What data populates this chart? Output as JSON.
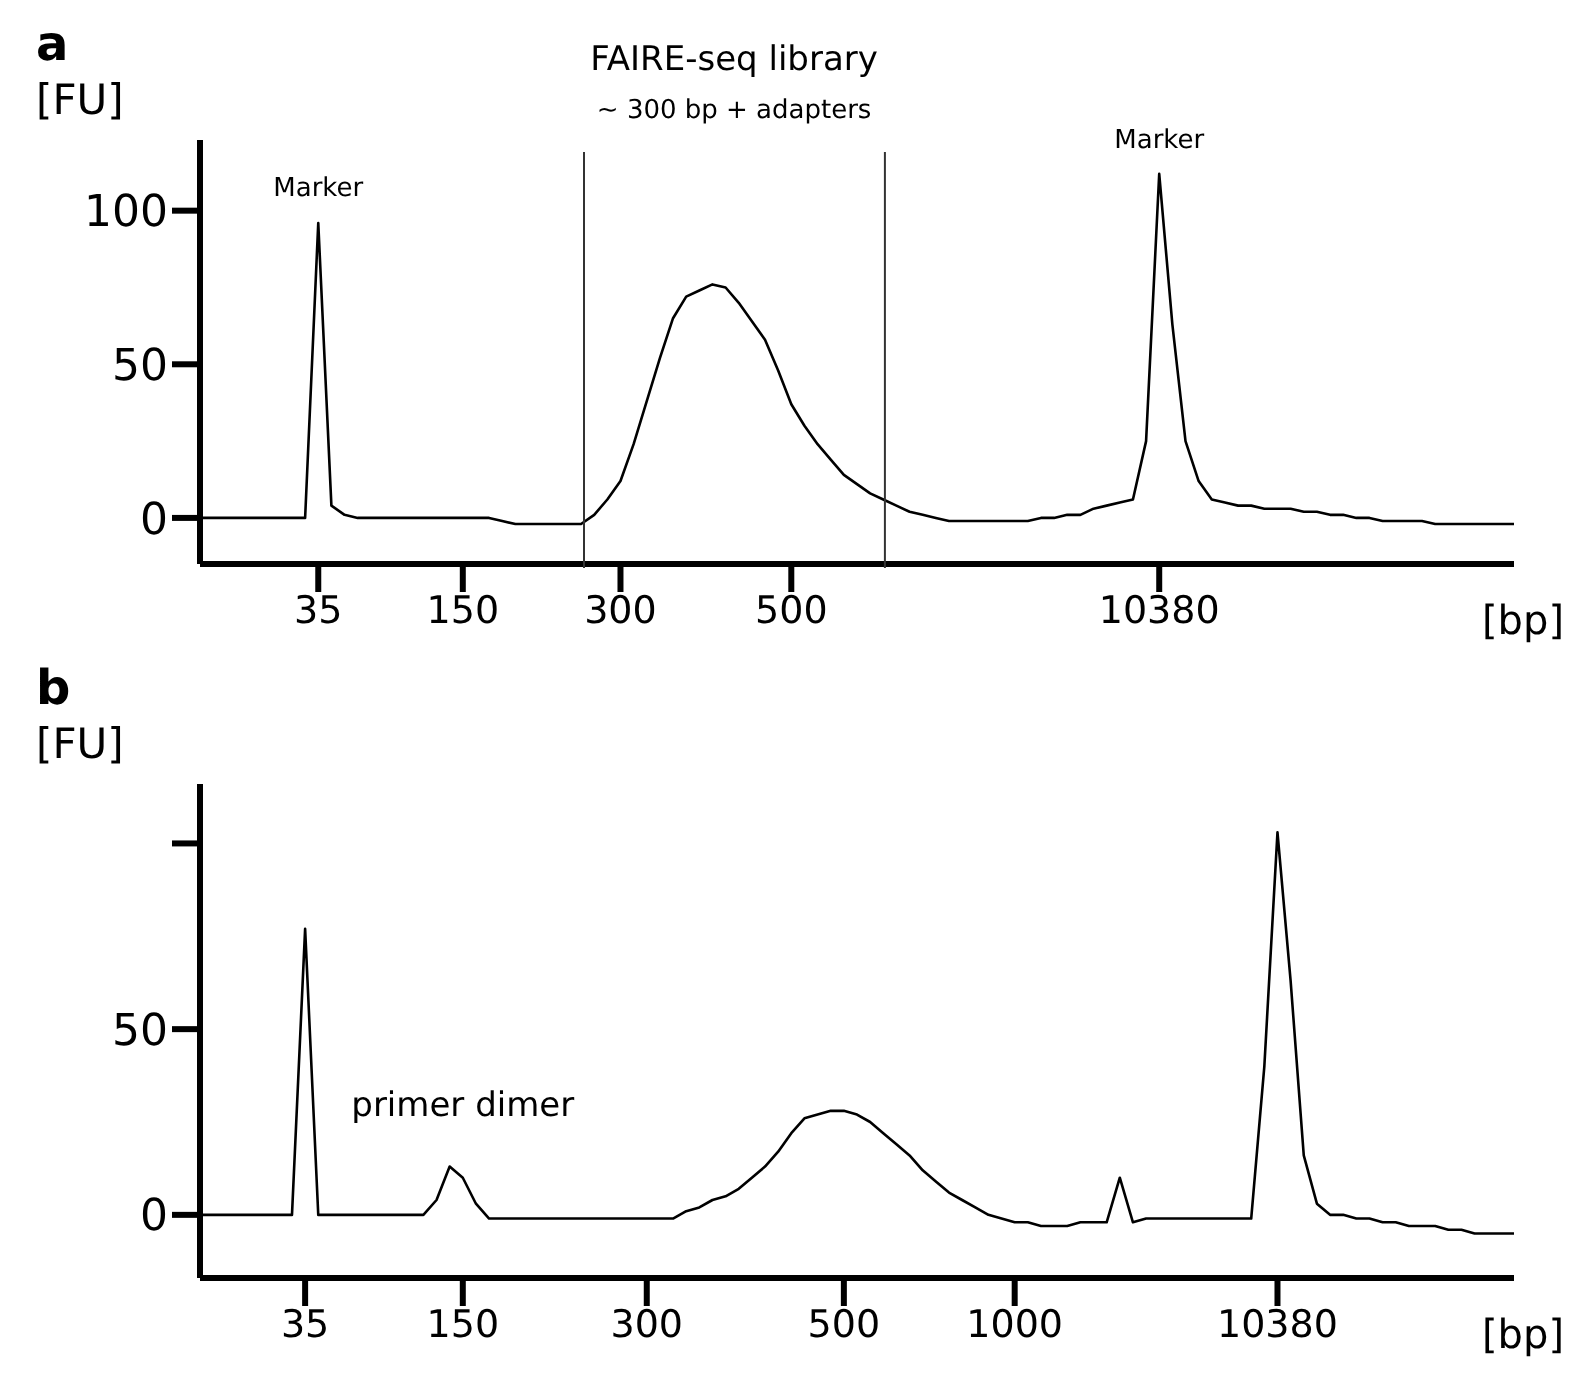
{
  "chart_data": [
    {
      "type": "line",
      "title": "a",
      "subtitle": "FAIRE-seq library",
      "ylabel": "[FU]",
      "xlabel": "[bp]",
      "annotations": [
        "~ 300 bp + adapters",
        {
          "text": "Marker",
          "x": "35",
          "y": 96
        },
        {
          "text": "Marker",
          "x": "10380",
          "y": 112
        }
      ],
      "categories": [
        null,
        null,
        null,
        null,
        null,
        null,
        null,
        null,
        null,
        "35",
        null,
        null,
        null,
        null,
        null,
        null,
        null,
        null,
        null,
        null,
        "150",
        null,
        null,
        null,
        null,
        null,
        null,
        null,
        null,
        null,
        null,
        null,
        "300",
        null,
        null,
        null,
        null,
        null,
        null,
        null,
        null,
        null,
        null,
        null,
        null,
        "500",
        null,
        null,
        null,
        null,
        null,
        null,
        null,
        null,
        null,
        null,
        null,
        null,
        null,
        null,
        null,
        null,
        null,
        null,
        null,
        null,
        null,
        null,
        null,
        null,
        null,
        null,
        null,
        "10380",
        null,
        null,
        null,
        null,
        null,
        null,
        null,
        null,
        null,
        null,
        null,
        null,
        null,
        null,
        null,
        null,
        null,
        null,
        null,
        null,
        null,
        null,
        null,
        null,
        null,
        null,
        null
      ],
      "series": [
        {
          "color": "#000000",
          "values": [
            0,
            0,
            0,
            0,
            0,
            0,
            0,
            0,
            0,
            96,
            4,
            1,
            0,
            0,
            0,
            0,
            0,
            0,
            0,
            0,
            0,
            0,
            0,
            -1,
            -2,
            -2,
            -2,
            -2,
            -2,
            -2,
            1,
            6,
            12,
            24,
            38,
            52,
            65,
            72,
            74,
            76,
            75,
            70,
            64,
            58,
            48,
            37,
            30,
            24,
            19,
            14,
            11,
            8,
            6,
            4,
            2,
            1,
            0,
            -1,
            -1,
            -1,
            -1,
            -1,
            -1,
            -1,
            0,
            0,
            1,
            1,
            3,
            4,
            5,
            6,
            25,
            112,
            63,
            25,
            12,
            6,
            5,
            4,
            4,
            3,
            3,
            3,
            2,
            2,
            1,
            1,
            0,
            0,
            -1,
            -1,
            -1,
            -1,
            -2,
            -2,
            -2,
            -2,
            -2,
            -2,
            -2
          ]
        }
      ],
      "ylim": [
        -15,
        123
      ],
      "yticks": [
        0,
        50,
        100
      ],
      "grid": false,
      "legend": false,
      "marker": "none"
    },
    {
      "type": "line",
      "title": "b",
      "ylabel": "[FU]",
      "xlabel": "[bp]",
      "annotations": [
        {
          "text": "primer dimer",
          "x": "150",
          "y": 13
        }
      ],
      "categories": [
        null,
        null,
        null,
        null,
        null,
        null,
        null,
        null,
        "35",
        null,
        null,
        null,
        null,
        null,
        null,
        null,
        null,
        null,
        null,
        null,
        "150",
        null,
        null,
        null,
        null,
        null,
        null,
        null,
        null,
        null,
        null,
        null,
        null,
        null,
        "300",
        null,
        null,
        null,
        null,
        null,
        null,
        null,
        null,
        null,
        null,
        null,
        null,
        null,
        null,
        "500",
        null,
        null,
        null,
        null,
        null,
        null,
        null,
        null,
        null,
        null,
        null,
        null,
        "1000",
        null,
        null,
        null,
        null,
        null,
        null,
        null,
        null,
        null,
        null,
        null,
        null,
        null,
        null,
        null,
        null,
        null,
        null,
        null,
        "10380",
        null,
        null,
        null,
        null,
        null,
        null,
        null,
        null,
        null,
        null,
        null,
        null,
        null,
        null,
        null,
        null,
        null,
        null
      ],
      "series": [
        {
          "color": "#000000",
          "values": [
            0,
            0,
            0,
            0,
            0,
            0,
            0,
            0,
            77,
            0,
            0,
            0,
            0,
            0,
            0,
            0,
            0,
            0,
            4,
            13,
            10,
            3,
            -1,
            -1,
            -1,
            -1,
            -1,
            -1,
            -1,
            -1,
            -1,
            -1,
            -1,
            -1,
            -1,
            -1,
            -1,
            1,
            2,
            4,
            5,
            7,
            10,
            13,
            17,
            22,
            26,
            27,
            28,
            28,
            27,
            25,
            22,
            19,
            16,
            12,
            9,
            6,
            4,
            2,
            0,
            -1,
            -2,
            -2,
            -3,
            -3,
            -3,
            -2,
            -2,
            -2,
            10,
            -2,
            -1,
            -1,
            -1,
            -1,
            -1,
            -1,
            -1,
            -1,
            -1,
            40,
            103,
            63,
            16,
            3,
            0,
            0,
            -1,
            -1,
            -2,
            -2,
            -3,
            -3,
            -3,
            -4,
            -4,
            -5,
            -5,
            -5,
            -5
          ]
        }
      ],
      "ylim": [
        -17,
        116
      ],
      "yticks": [
        0,
        50,
        {
          "value": 100,
          "label": null
        }
      ],
      "grid": false,
      "legend": false,
      "marker": "none"
    }
  ]
}
